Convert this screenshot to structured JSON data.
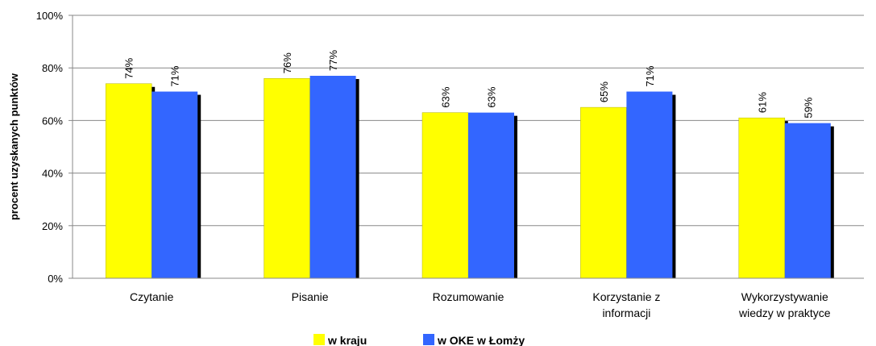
{
  "chart_data": {
    "type": "bar",
    "categories": [
      [
        "Czytanie"
      ],
      [
        "Pisanie"
      ],
      [
        "Rozumowanie"
      ],
      [
        "Korzystanie z",
        "informacji"
      ],
      [
        "Wykorzystywanie",
        "wiedzy w praktyce"
      ]
    ],
    "series": [
      {
        "name": "w kraju",
        "values": [
          74,
          76,
          63,
          65,
          61
        ],
        "color": "#ffff00"
      },
      {
        "name": "w OKE w Łomży",
        "values": [
          71,
          77,
          63,
          71,
          59
        ],
        "color": "#3366ff"
      }
    ],
    "ylabel": "procent uzyskanych  punktów",
    "ylim": [
      0,
      100
    ],
    "yticks": [
      0,
      20,
      40,
      60,
      80,
      100
    ],
    "ytick_labels": [
      "0%",
      "20%",
      "40%",
      "60%",
      "80%",
      "100%"
    ],
    "data_labels": [
      [
        "74%",
        "76%",
        "63%",
        "65%",
        "61%"
      ],
      [
        "71%",
        "77%",
        "63%",
        "71%",
        "59%"
      ]
    ],
    "grid": true,
    "legend_position": "bottom"
  }
}
